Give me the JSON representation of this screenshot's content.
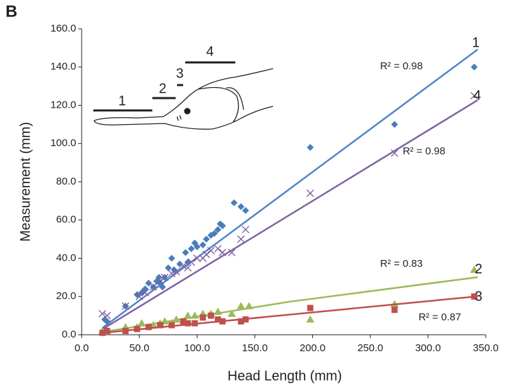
{
  "panel_label": "B",
  "chart_data": {
    "type": "scatter",
    "xlabel": "Head Length (mm)",
    "ylabel": "Measurement (mm)",
    "xlim": [
      0,
      350
    ],
    "ylim": [
      0,
      160
    ],
    "xticks": [
      {
        "value": 0,
        "label": "0.0"
      },
      {
        "value": 50,
        "label": "50.0"
      },
      {
        "value": 100,
        "label": "100.0"
      },
      {
        "value": 150,
        "label": "150.0"
      },
      {
        "value": 200,
        "label": "200.0"
      },
      {
        "value": 250,
        "label": "250.0"
      },
      {
        "value": 300,
        "label": "300.0"
      },
      {
        "value": 350,
        "label": "350.0"
      }
    ],
    "yticks": [
      {
        "value": 0,
        "label": "0.0"
      },
      {
        "value": 20,
        "label": "20.0"
      },
      {
        "value": 40,
        "label": "40.0"
      },
      {
        "value": 60,
        "label": "60.0"
      },
      {
        "value": 80,
        "label": "80.0"
      },
      {
        "value": 100,
        "label": "100.0"
      },
      {
        "value": 120,
        "label": "120.0"
      },
      {
        "value": 140,
        "label": "140.0"
      },
      {
        "value": 160,
        "label": "160.0"
      }
    ],
    "grid": false,
    "series": [
      {
        "name": "1",
        "color": "#4a7ebb",
        "line_color": "#4f86c6",
        "marker": "diamond",
        "r2": "R² = 0.98",
        "x": [
          20,
          22,
          38,
          48,
          52,
          55,
          58,
          62,
          65,
          67,
          68,
          70,
          72,
          75,
          78,
          80,
          85,
          90,
          92,
          95,
          98,
          100,
          105,
          108,
          112,
          115,
          118,
          120,
          122,
          132,
          138,
          142,
          198,
          271,
          340
        ],
        "values": [
          8,
          7,
          15,
          21,
          22,
          24,
          27,
          25,
          28,
          30,
          27,
          25,
          30,
          35,
          40,
          34,
          37,
          43,
          38,
          45,
          48,
          46,
          47,
          50,
          52,
          53,
          55,
          58,
          57,
          69,
          67,
          65,
          98,
          110,
          140
        ],
        "trendline": {
          "x": [
            18,
            343
          ],
          "y": [
            3.6,
            149.2
          ]
        }
      },
      {
        "name": "4",
        "color": "#7d5fa0",
        "line_color": "#8064a2",
        "marker": "x",
        "r2": "R² = 0.98",
        "x": [
          18,
          22,
          38,
          50,
          55,
          62,
          68,
          72,
          78,
          82,
          88,
          92,
          95,
          100,
          105,
          108,
          112,
          118,
          122,
          130,
          138,
          142,
          198,
          271,
          340
        ],
        "values": [
          11,
          10,
          15,
          20,
          22,
          25,
          28,
          30,
          32,
          33,
          36,
          35,
          38,
          40,
          40,
          42,
          44,
          45,
          43,
          43,
          50,
          55,
          74,
          95,
          125
        ],
        "trendline": {
          "x": [
            18,
            343
          ],
          "y": [
            2.9,
            122.7
          ]
        }
      },
      {
        "name": "2",
        "color": "#9bbb59",
        "line_color": "#9bbb59",
        "marker": "triangle",
        "r2": "R² = 0.83",
        "x": [
          18,
          22,
          38,
          48,
          52,
          62,
          68,
          72,
          78,
          82,
          92,
          98,
          105,
          112,
          118,
          130,
          138,
          145,
          198,
          271,
          340
        ],
        "values": [
          2,
          2,
          4,
          4,
          6,
          5,
          6,
          7,
          6,
          8,
          10,
          10,
          11,
          11,
          12,
          11,
          15,
          15,
          8,
          16,
          34
        ],
        "trendline": {
          "x": [
            18,
            179,
            343
          ],
          "y": [
            1.4,
            17.2,
            30.1
          ]
        }
      },
      {
        "name": "3",
        "color": "#c0504d",
        "line_color": "#c0504d",
        "marker": "square",
        "r2": "R² = 0.87",
        "x": [
          18,
          22,
          38,
          48,
          58,
          68,
          78,
          88,
          92,
          98,
          105,
          112,
          118,
          122,
          138,
          142,
          198,
          271,
          340
        ],
        "values": [
          1,
          2,
          2,
          3,
          4,
          5,
          5,
          7,
          6,
          6,
          9,
          10,
          8,
          7,
          7,
          8,
          14,
          13,
          20
        ],
        "trendline": {
          "x": [
            18,
            343
          ],
          "y": [
            1,
            20.1
          ]
        }
      }
    ]
  }
}
